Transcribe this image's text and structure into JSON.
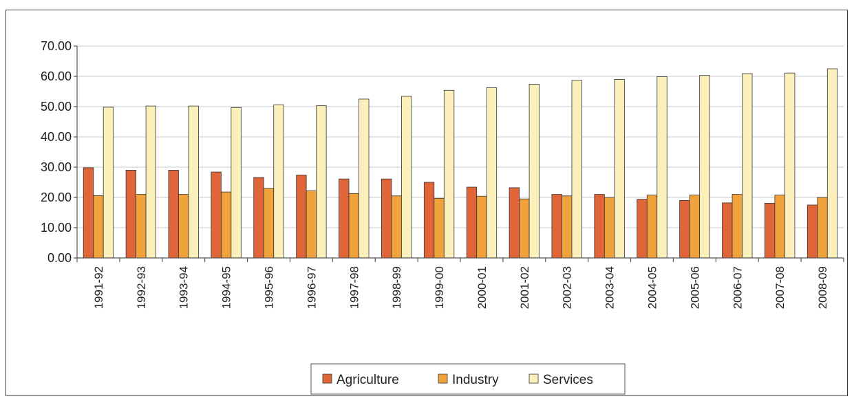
{
  "chart_data": {
    "type": "bar",
    "title": "",
    "xlabel": "",
    "ylabel": "",
    "ylim": [
      0,
      70
    ],
    "yticks": [
      "0.00",
      "10.00",
      "20.00",
      "30.00",
      "40.00",
      "50.00",
      "60.00",
      "70.00"
    ],
    "grid": true,
    "legend_position": "bottom",
    "categories": [
      "1991-92",
      "1992-93",
      "1993-94",
      "1994-95",
      "1995-96",
      "1996-97",
      "1997-98",
      "1998-99",
      "1999-00",
      "2000-01",
      "2001-02",
      "2002-03",
      "2003-04",
      "2004-05",
      "2005-06",
      "2006-07",
      "2007-08",
      "2008-09"
    ],
    "series": [
      {
        "name": "Agriculture",
        "color": "#e0663a",
        "values": [
          29.8,
          29.0,
          29.0,
          28.4,
          26.6,
          27.4,
          26.1,
          26.1,
          25.0,
          23.4,
          23.2,
          21.0,
          21.0,
          19.4,
          19.0,
          18.2,
          18.1,
          17.5
        ]
      },
      {
        "name": "Industry",
        "color": "#f0a23c",
        "values": [
          20.6,
          21.0,
          21.0,
          21.8,
          23.0,
          22.2,
          21.3,
          20.5,
          19.7,
          20.4,
          19.5,
          20.5,
          20.0,
          20.8,
          20.8,
          21.0,
          20.8,
          20.0
        ]
      },
      {
        "name": "Services",
        "color": "#fbefbb",
        "values": [
          49.8,
          50.2,
          50.2,
          49.7,
          50.6,
          50.3,
          52.5,
          53.4,
          55.4,
          56.3,
          57.4,
          58.7,
          59.0,
          59.9,
          60.3,
          60.9,
          61.1,
          62.5
        ]
      }
    ]
  }
}
